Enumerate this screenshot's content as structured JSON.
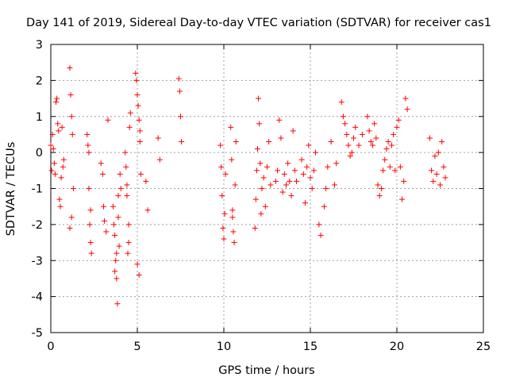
{
  "chart_data": {
    "type": "scatter",
    "title": "Day 141 of 2019, Sidereal Day-to-day VTEC variation (SDTVAR) for receiver cas1",
    "xlabel": "GPS time / hours",
    "ylabel": "SDTVAR / TECUs",
    "xlim": [
      0,
      25
    ],
    "ylim": [
      -5,
      3
    ],
    "xticks": [
      0,
      5,
      10,
      15,
      20,
      25
    ],
    "yticks": [
      -5,
      -4,
      -3,
      -2,
      -1,
      0,
      1,
      2,
      3
    ],
    "grid": true,
    "marker": "+",
    "series": [
      {
        "name": "SDTVAR",
        "color": "#ff0000",
        "x": [
          0.0,
          0.05,
          0.1,
          0.15,
          0.2,
          0.25,
          0.3,
          0.35,
          0.4,
          0.45,
          0.5,
          0.55,
          0.6,
          0.65,
          0.7,
          0.75,
          1.1,
          1.15,
          1.2,
          1.25,
          1.3,
          1.1,
          1.2,
          2.1,
          2.15,
          2.2,
          2.25,
          2.3,
          2.35,
          2.2,
          2.3,
          2.9,
          3.0,
          3.05,
          3.1,
          3.2,
          3.3,
          3.6,
          3.65,
          3.7,
          3.75,
          3.8,
          3.85,
          3.9,
          3.95,
          4.0,
          4.05,
          3.7,
          3.8,
          3.9,
          4.3,
          4.35,
          4.4,
          4.45,
          4.5,
          4.55,
          4.6,
          4.5,
          4.4,
          4.9,
          4.95,
          5.0,
          5.05,
          5.1,
          5.15,
          5.2,
          5.0,
          5.1,
          5.15,
          5.5,
          5.6,
          6.2,
          6.3,
          7.4,
          7.45,
          7.5,
          7.55,
          9.8,
          9.85,
          9.9,
          9.95,
          10.0,
          10.05,
          10.1,
          10.4,
          10.45,
          10.5,
          10.55,
          10.6,
          10.65,
          10.7,
          10.5,
          11.8,
          11.85,
          11.9,
          11.95,
          12.0,
          12.05,
          12.1,
          12.15,
          12.2,
          12.3,
          12.4,
          12.5,
          12.6,
          12.7,
          13.0,
          13.1,
          13.2,
          13.3,
          13.4,
          13.5,
          13.6,
          13.7,
          13.8,
          13.9,
          14.0,
          14.1,
          14.2,
          14.5,
          14.6,
          14.7,
          14.8,
          14.9,
          15.0,
          15.1,
          15.2,
          15.3,
          15.5,
          15.6,
          15.8,
          15.9,
          16.0,
          16.2,
          16.4,
          16.5,
          16.8,
          16.9,
          17.0,
          17.1,
          17.2,
          17.3,
          17.4,
          17.5,
          17.6,
          17.8,
          18.0,
          18.3,
          18.4,
          18.5,
          18.6,
          18.7,
          18.8,
          18.9,
          19.0,
          19.1,
          19.2,
          19.3,
          19.4,
          19.5,
          19.6,
          19.7,
          19.8,
          19.9,
          20.0,
          20.1,
          20.2,
          20.3,
          20.4,
          20.5,
          20.6,
          21.9,
          22.0,
          22.1,
          22.2,
          22.3,
          22.4,
          22.5,
          22.6,
          22.7,
          22.8
        ],
        "y": [
          0.2,
          -0.5,
          0.5,
          0.1,
          -0.3,
          -0.6,
          1.4,
          1.5,
          0.8,
          0.6,
          -1.3,
          -1.5,
          -0.7,
          0.7,
          -0.4,
          -0.2,
          2.35,
          1.6,
          1.0,
          0.5,
          -1.0,
          -2.1,
          -1.8,
          0.5,
          0.2,
          -1.0,
          -2.0,
          -2.5,
          -2.8,
          0.0,
          -1.6,
          -0.3,
          -0.6,
          -1.5,
          -1.9,
          -2.2,
          0.9,
          -1.5,
          -2.0,
          -2.3,
          -3.0,
          -3.5,
          -4.2,
          -1.8,
          -2.6,
          -0.6,
          -1.0,
          -3.3,
          -2.8,
          -1.2,
          0.0,
          -0.4,
          -1.2,
          -2.8,
          -2.5,
          0.7,
          1.1,
          -2.0,
          -0.9,
          2.2,
          2.0,
          1.6,
          1.3,
          0.9,
          0.6,
          -0.6,
          -3.1,
          -3.4,
          0.3,
          -0.8,
          -1.6,
          0.4,
          -0.2,
          2.05,
          1.7,
          1.0,
          0.3,
          0.2,
          -0.4,
          -1.2,
          -2.1,
          -2.4,
          -1.7,
          -0.6,
          0.7,
          -0.2,
          -1.6,
          -2.2,
          -2.5,
          -0.9,
          0.3,
          -1.8,
          -2.1,
          -1.3,
          -0.5,
          0.1,
          1.5,
          0.8,
          -0.3,
          -1.7,
          -1.0,
          -0.7,
          -1.5,
          -0.4,
          0.3,
          -0.9,
          -0.8,
          -0.5,
          0.9,
          0.4,
          -1.1,
          -0.6,
          -0.9,
          -0.3,
          -0.8,
          -1.2,
          0.6,
          -0.5,
          -0.8,
          -0.2,
          -0.6,
          -1.4,
          -0.4,
          0.2,
          -0.7,
          -1.0,
          -0.5,
          0.0,
          -2.0,
          -2.3,
          -1.5,
          -1.0,
          -0.4,
          0.3,
          -0.9,
          -0.3,
          1.4,
          1.0,
          0.8,
          0.5,
          0.2,
          -0.1,
          0.0,
          0.4,
          0.7,
          0.2,
          0.5,
          1.0,
          0.6,
          0.3,
          0.2,
          0.8,
          0.4,
          -0.9,
          -1.2,
          -1.0,
          -0.5,
          -0.2,
          0.1,
          0.3,
          -0.4,
          0.2,
          0.5,
          -0.5,
          0.7,
          0.9,
          -0.4,
          -1.3,
          -0.8,
          1.5,
          1.2,
          0.4,
          -0.5,
          -0.8,
          -0.1,
          -0.6,
          0.0,
          -0.9,
          0.3,
          -0.4,
          -0.7
        ]
      }
    ]
  }
}
